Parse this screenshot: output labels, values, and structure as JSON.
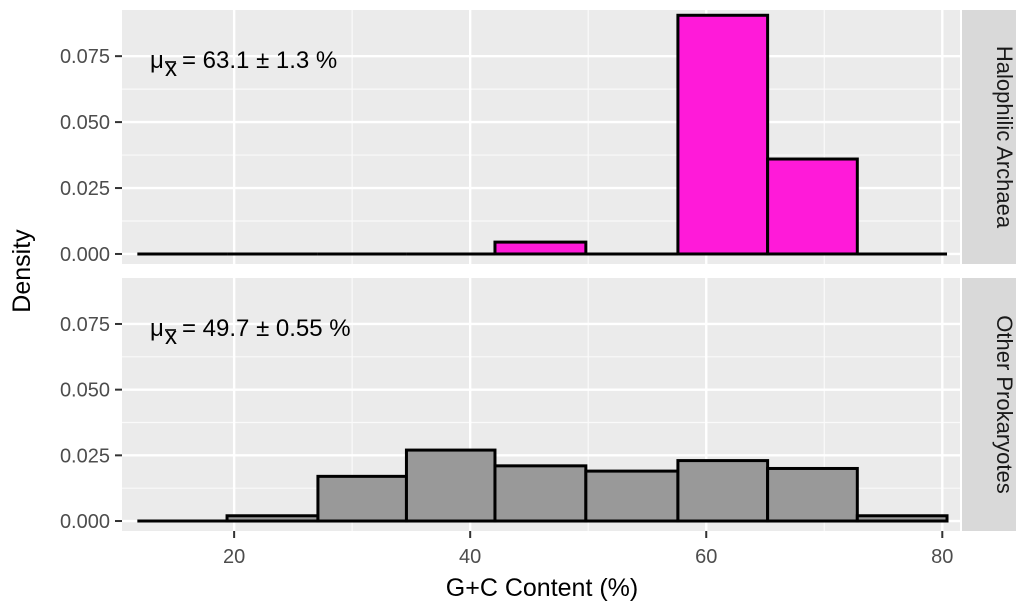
{
  "chart_data": {
    "type": "histogram",
    "xlabel": "G+C Content (%)",
    "ylabel": "Density",
    "x_ticks": [
      20,
      40,
      60,
      80
    ],
    "y_ticks": [
      "0.000",
      "0.025",
      "0.050",
      "0.075"
    ],
    "xlim": [
      10.5,
      81.5
    ],
    "ylim": [
      -0.0038,
      0.0925
    ],
    "bin_edges": [
      11.8,
      19.4,
      27.1,
      34.6,
      42.1,
      49.8,
      57.6,
      65.2,
      72.8,
      80.4
    ],
    "panel_background": "#ebebeb",
    "strip_background": "#d9d9d9",
    "grid": true,
    "panels": [
      {
        "strip_label": "Halophilic Archaea",
        "annotation_lhs": "μ",
        "annotation_sub": "x",
        "annotation_rhs": "= 63.1 ± 1.3 %",
        "fill": "#ff1ad9",
        "values": [
          0,
          0,
          0,
          0,
          0.0045,
          0,
          0.0905,
          0.036,
          0
        ]
      },
      {
        "strip_label": "Other Prokaryotes",
        "annotation_lhs": "μ",
        "annotation_sub": "x",
        "annotation_rhs": "= 49.7 ± 0.55 %",
        "fill": "#999999",
        "values": [
          0,
          0.002,
          0.017,
          0.027,
          0.021,
          0.019,
          0.023,
          0.02,
          0.002
        ]
      }
    ]
  }
}
